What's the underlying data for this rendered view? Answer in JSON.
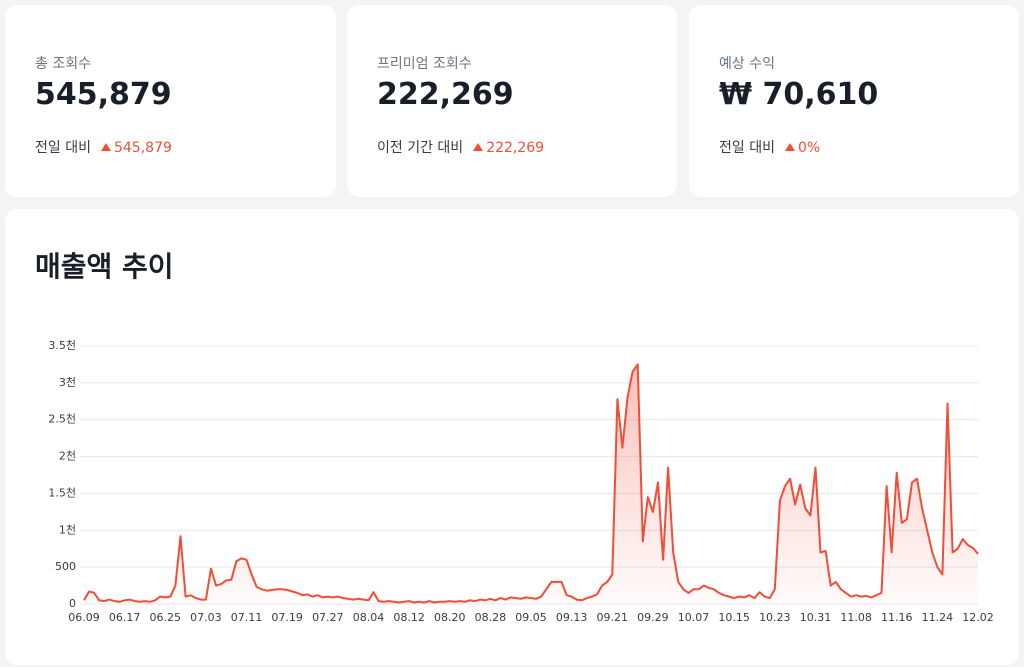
{
  "cards": [
    {
      "label": "총 조회수",
      "value": "545,879",
      "compare": "전일 대비",
      "delta": "545,879"
    },
    {
      "label": "프리미엄 조회수",
      "value": "222,269",
      "compare": "이전 기간 대비",
      "delta": "222,269"
    },
    {
      "label": "예상 수익",
      "value": "₩ 70,610",
      "compare": "전일 대비",
      "delta": "0%"
    }
  ],
  "chart_data": {
    "type": "area",
    "title": "매출액 추이",
    "color": "#f04e37",
    "grid": true,
    "ylim": [
      0,
      3500
    ],
    "yticks": [
      0,
      500,
      {
        "value": 1000,
        "label": "1천"
      },
      {
        "value": 1500,
        "label": "1.5천"
      },
      {
        "value": 2000,
        "label": "2천"
      },
      {
        "value": 2500,
        "label": "2.5천"
      },
      {
        "value": 3000,
        "label": "3천"
      },
      {
        "value": 3500,
        "label": "3.5천"
      }
    ],
    "categories": [
      "06.09",
      null,
      null,
      null,
      null,
      null,
      null,
      null,
      "06.17",
      null,
      null,
      null,
      null,
      null,
      null,
      null,
      "06.25",
      null,
      null,
      null,
      null,
      null,
      null,
      null,
      "07.03",
      null,
      null,
      null,
      null,
      null,
      null,
      null,
      "07.11",
      null,
      null,
      null,
      null,
      null,
      null,
      null,
      "07.19",
      null,
      null,
      null,
      null,
      null,
      null,
      null,
      "07.27",
      null,
      null,
      null,
      null,
      null,
      null,
      null,
      "08.04",
      null,
      null,
      null,
      null,
      null,
      null,
      null,
      "08.12",
      null,
      null,
      null,
      null,
      null,
      null,
      null,
      "08.20",
      null,
      null,
      null,
      null,
      null,
      null,
      null,
      "08.28",
      null,
      null,
      null,
      null,
      null,
      null,
      null,
      "09.05",
      null,
      null,
      null,
      null,
      null,
      null,
      null,
      "09.13",
      null,
      null,
      null,
      null,
      null,
      null,
      null,
      "09.21",
      null,
      null,
      null,
      null,
      null,
      null,
      null,
      "09.29",
      null,
      null,
      null,
      null,
      null,
      null,
      null,
      "10.07",
      null,
      null,
      null,
      null,
      null,
      null,
      null,
      "10.15",
      null,
      null,
      null,
      null,
      null,
      null,
      null,
      "10.23",
      null,
      null,
      null,
      null,
      null,
      null,
      null,
      "10.31",
      null,
      null,
      null,
      null,
      null,
      null,
      null,
      "11.08",
      null,
      null,
      null,
      null,
      null,
      null,
      null,
      "11.16",
      null,
      null,
      null,
      null,
      null,
      null,
      null,
      "11.24",
      null,
      null,
      null,
      null,
      null,
      null,
      null,
      "12.02"
    ],
    "values": [
      50,
      170,
      150,
      50,
      40,
      60,
      40,
      30,
      50,
      60,
      40,
      30,
      40,
      30,
      50,
      100,
      90,
      100,
      250,
      920,
      100,
      120,
      80,
      60,
      60,
      480,
      250,
      270,
      320,
      330,
      580,
      620,
      600,
      400,
      230,
      200,
      180,
      190,
      200,
      200,
      190,
      170,
      150,
      120,
      130,
      100,
      120,
      90,
      100,
      90,
      100,
      80,
      70,
      60,
      70,
      60,
      50,
      160,
      40,
      30,
      40,
      30,
      20,
      30,
      40,
      20,
      30,
      20,
      40,
      20,
      30,
      30,
      40,
      30,
      40,
      30,
      50,
      40,
      60,
      50,
      70,
      50,
      80,
      60,
      90,
      80,
      70,
      90,
      80,
      70,
      100,
      200,
      300,
      300,
      300,
      120,
      100,
      60,
      50,
      80,
      100,
      130,
      250,
      300,
      400,
      2780,
      2120,
      2800,
      3150,
      3250,
      850,
      1450,
      1250,
      1650,
      600,
      1850,
      700,
      300,
      200,
      150,
      200,
      200,
      250,
      220,
      200,
      150,
      120,
      100,
      80,
      100,
      90,
      120,
      80,
      160,
      100,
      80,
      200,
      1400,
      1600,
      1700,
      1350,
      1620,
      1300,
      1200,
      1850,
      700,
      720,
      250,
      300,
      200,
      150,
      100,
      120,
      100,
      110,
      90,
      120,
      150,
      1600,
      700,
      1780,
      1100,
      1150,
      1650,
      1700,
      1300,
      1000,
      700,
      500,
      400,
      2720,
      700,
      750,
      880,
      800,
      760,
      680
    ]
  }
}
